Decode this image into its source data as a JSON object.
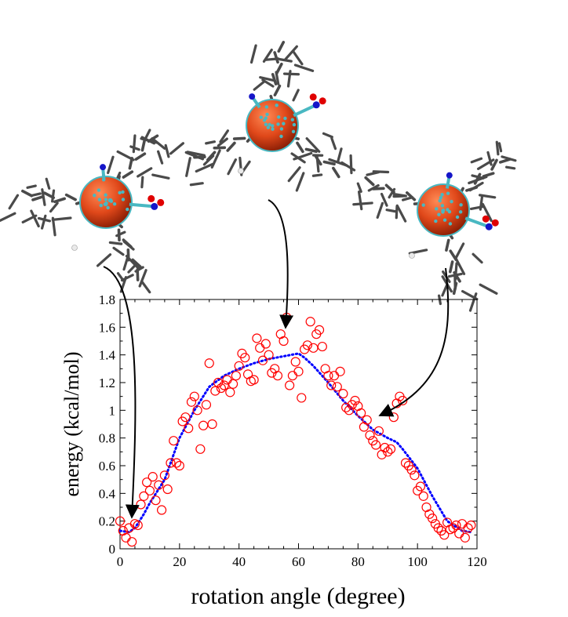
{
  "chart_data": {
    "type": "scatter",
    "title": "",
    "xlabel": "rotation angle (degree)",
    "ylabel": "energy (kcal/mol)",
    "xlim": [
      0,
      120
    ],
    "ylim": [
      0,
      1.8
    ],
    "xticks": [
      0,
      20,
      40,
      60,
      80,
      100,
      120
    ],
    "yticks": [
      0,
      0.2,
      0.4,
      0.6,
      0.8,
      1,
      1.2,
      1.4,
      1.6,
      1.8
    ],
    "xtick_labels": [
      "0",
      "20",
      "40",
      "60",
      "80",
      "100",
      "120"
    ],
    "ytick_labels": [
      "0",
      "0.2",
      "0.4",
      "0.6",
      "0.8",
      "1",
      "1.2",
      "1.4",
      "1.6",
      "1.8"
    ],
    "grid": false,
    "legend": "none",
    "series": [
      {
        "kind": "scatter",
        "color": "#ff0000",
        "marker": "open-circle",
        "points": [
          [
            0,
            0.2
          ],
          [
            1,
            0.13
          ],
          [
            2,
            0.08
          ],
          [
            3,
            0.15
          ],
          [
            4,
            0.05
          ],
          [
            5,
            0.18
          ],
          [
            6,
            0.17
          ],
          [
            7,
            0.32
          ],
          [
            8,
            0.38
          ],
          [
            9,
            0.48
          ],
          [
            10,
            0.42
          ],
          [
            11,
            0.52
          ],
          [
            12,
            0.35
          ],
          [
            13,
            0.46
          ],
          [
            14,
            0.28
          ],
          [
            15,
            0.53
          ],
          [
            16,
            0.43
          ],
          [
            17,
            0.62
          ],
          [
            18,
            0.78
          ],
          [
            19,
            0.62
          ],
          [
            20,
            0.6
          ],
          [
            21,
            0.92
          ],
          [
            22,
            0.95
          ],
          [
            23,
            0.87
          ],
          [
            24,
            1.06
          ],
          [
            25,
            1.1
          ],
          [
            26,
            1.0
          ],
          [
            27,
            0.72
          ],
          [
            28,
            0.89
          ],
          [
            29,
            1.04
          ],
          [
            30,
            1.34
          ],
          [
            31,
            0.9
          ],
          [
            32,
            1.14
          ],
          [
            33,
            1.2
          ],
          [
            34,
            1.16
          ],
          [
            35,
            1.18
          ],
          [
            36,
            1.22
          ],
          [
            37,
            1.13
          ],
          [
            38,
            1.19
          ],
          [
            39,
            1.25
          ],
          [
            40,
            1.32
          ],
          [
            41,
            1.41
          ],
          [
            42,
            1.38
          ],
          [
            43,
            1.26
          ],
          [
            44,
            1.21
          ],
          [
            45,
            1.22
          ],
          [
            46,
            1.52
          ],
          [
            47,
            1.45
          ],
          [
            48,
            1.36
          ],
          [
            49,
            1.48
          ],
          [
            50,
            1.4
          ],
          [
            51,
            1.27
          ],
          [
            52,
            1.3
          ],
          [
            53,
            1.25
          ],
          [
            54,
            1.55
          ],
          [
            55,
            1.5
          ],
          [
            56,
            1.67
          ],
          [
            57,
            1.18
          ],
          [
            58,
            1.25
          ],
          [
            59,
            1.35
          ],
          [
            60,
            1.28
          ],
          [
            61,
            1.09
          ],
          [
            62,
            1.44
          ],
          [
            63,
            1.47
          ],
          [
            64,
            1.64
          ],
          [
            65,
            1.45
          ],
          [
            66,
            1.55
          ],
          [
            67,
            1.58
          ],
          [
            68,
            1.46
          ],
          [
            69,
            1.3
          ],
          [
            70,
            1.25
          ],
          [
            71,
            1.18
          ],
          [
            72,
            1.25
          ],
          [
            73,
            1.17
          ],
          [
            74,
            1.28
          ],
          [
            75,
            1.12
          ],
          [
            76,
            1.02
          ],
          [
            77,
            1.0
          ],
          [
            78,
            1.04
          ],
          [
            79,
            1.07
          ],
          [
            80,
            1.03
          ],
          [
            81,
            0.98
          ],
          [
            82,
            0.88
          ],
          [
            83,
            0.93
          ],
          [
            84,
            0.82
          ],
          [
            85,
            0.78
          ],
          [
            86,
            0.75
          ],
          [
            87,
            0.85
          ],
          [
            88,
            0.68
          ],
          [
            89,
            0.73
          ],
          [
            90,
            0.7
          ],
          [
            91,
            0.72
          ],
          [
            92,
            0.95
          ],
          [
            93,
            1.05
          ],
          [
            94,
            1.1
          ],
          [
            95,
            1.07
          ],
          [
            96,
            0.62
          ],
          [
            97,
            0.6
          ],
          [
            98,
            0.57
          ],
          [
            99,
            0.53
          ],
          [
            100,
            0.42
          ],
          [
            101,
            0.45
          ],
          [
            102,
            0.38
          ],
          [
            103,
            0.3
          ],
          [
            104,
            0.25
          ],
          [
            105,
            0.22
          ],
          [
            106,
            0.18
          ],
          [
            107,
            0.15
          ],
          [
            108,
            0.13
          ],
          [
            109,
            0.1
          ],
          [
            110,
            0.19
          ],
          [
            111,
            0.14
          ],
          [
            112,
            0.15
          ],
          [
            113,
            0.17
          ],
          [
            114,
            0.11
          ],
          [
            115,
            0.18
          ],
          [
            116,
            0.08
          ],
          [
            117,
            0.15
          ],
          [
            118,
            0.17
          ]
        ]
      },
      {
        "kind": "line",
        "style": "dotted",
        "color": "#0000ff",
        "points": [
          [
            0,
            0.13
          ],
          [
            3,
            0.12
          ],
          [
            5,
            0.15
          ],
          [
            8,
            0.25
          ],
          [
            10,
            0.33
          ],
          [
            15,
            0.5
          ],
          [
            20,
            0.8
          ],
          [
            25,
            1.0
          ],
          [
            30,
            1.17
          ],
          [
            35,
            1.25
          ],
          [
            40,
            1.3
          ],
          [
            45,
            1.34
          ],
          [
            50,
            1.37
          ],
          [
            55,
            1.39
          ],
          [
            60,
            1.41
          ],
          [
            62,
            1.38
          ],
          [
            65,
            1.32
          ],
          [
            70,
            1.2
          ],
          [
            75,
            1.07
          ],
          [
            80,
            0.96
          ],
          [
            85,
            0.86
          ],
          [
            90,
            0.8
          ],
          [
            93,
            0.77
          ],
          [
            95,
            0.72
          ],
          [
            100,
            0.58
          ],
          [
            105,
            0.38
          ],
          [
            110,
            0.2
          ],
          [
            115,
            0.13
          ],
          [
            118,
            0.12
          ]
        ]
      }
    ],
    "annotations": [
      {
        "kind": "arrow",
        "from_picture": "left molecule",
        "to": [
          4,
          0.12
        ]
      },
      {
        "kind": "arrow",
        "from_picture": "middle molecule",
        "to": [
          57,
          1.62
        ]
      },
      {
        "kind": "arrow",
        "from_picture": "right molecule",
        "to": [
          86,
          0.95
        ]
      }
    ]
  },
  "figure": {
    "images": [
      {
        "name": "molecule-left",
        "depicts": "fullerene with three aromatic arms, rotated 0 deg"
      },
      {
        "name": "molecule-middle",
        "depicts": "fullerene with three aromatic arms, rotated ~60 deg"
      },
      {
        "name": "molecule-right",
        "depicts": "fullerene with three aromatic arms, rotated ~90 deg"
      }
    ],
    "colors": {
      "fullerene": "#e8501e",
      "cage_bond": "#49b8c2",
      "arm": "#4a4a4a",
      "nitrogen": "#1515c8",
      "oxygen": "#e00000",
      "hydrogen": "#eaeaea"
    }
  }
}
